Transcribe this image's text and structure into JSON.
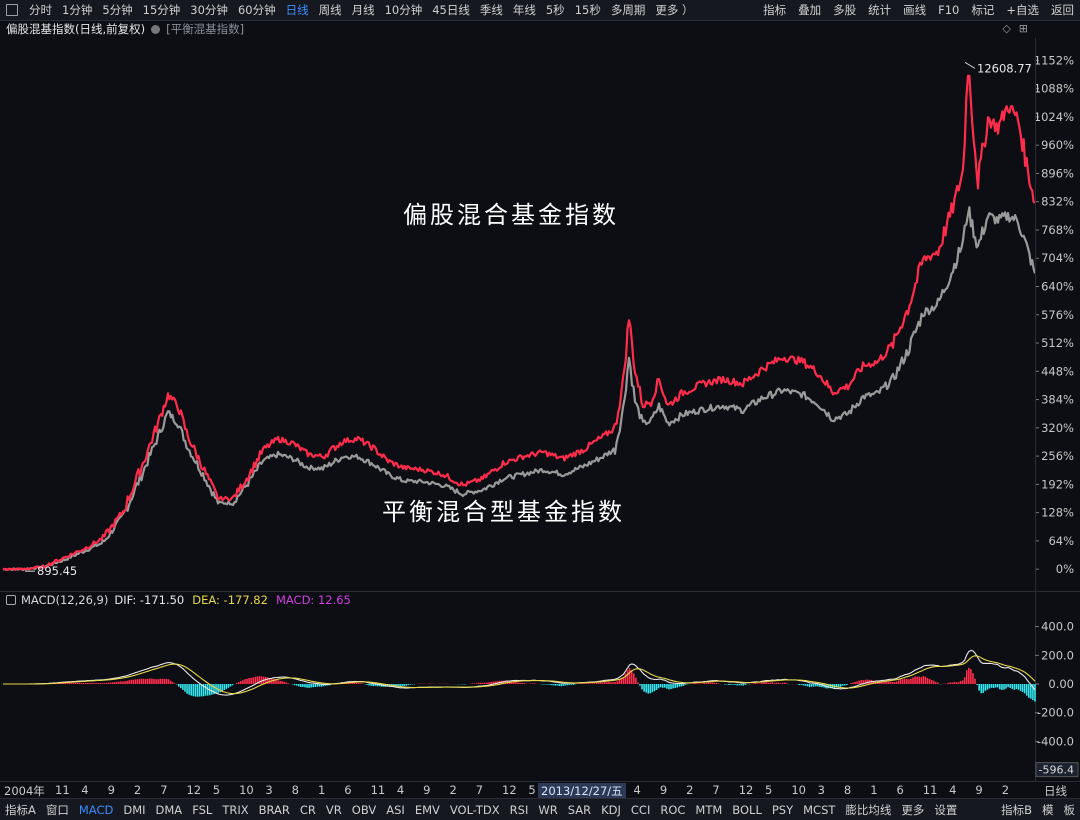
{
  "topbar": {
    "periods": [
      "分时",
      "1分钟",
      "5分钟",
      "15分钟",
      "30分钟",
      "60分钟",
      "日线",
      "周线",
      "月线",
      "10分钟",
      "45日线",
      "季线",
      "年线",
      "5秒",
      "15秒",
      "多周期",
      "更多 ）"
    ],
    "active_period": "日线",
    "tools": [
      "指标",
      "叠加",
      "多股",
      "统计",
      "画线",
      "F10",
      "标记",
      "+自选",
      "返回"
    ]
  },
  "titlebar": {
    "index_name": "偏股混基指数(日线,前复权)",
    "overlay_name": "[平衡混基指数]",
    "right_icons": [
      "◇",
      "⊞"
    ]
  },
  "main_chart": {
    "y_ticks": [
      "1152%",
      "1088%",
      "1024%",
      "960%",
      "896%",
      "832%",
      "768%",
      "704%",
      "640%",
      "576%",
      "512%",
      "448%",
      "384%",
      "320%",
      "256%",
      "192%",
      "128%",
      "64%",
      "0%"
    ],
    "y_tick_values": [
      1152,
      1088,
      1024,
      960,
      896,
      832,
      768,
      704,
      640,
      576,
      512,
      448,
      384,
      320,
      256,
      192,
      128,
      64,
      0
    ],
    "high_label": "12608.77",
    "low_label": "895.45",
    "annotation_top": "偏股混合基金指数",
    "annotation_bottom": "平衡混合型基金指数"
  },
  "macd": {
    "label": "MACD(12,26,9)",
    "dif_label": "DIF: -171.50",
    "dea_label": "DEA: -177.82",
    "macd_label": "MACD: 12.65",
    "y_ticks": [
      "400.0",
      "200.0",
      "0.00",
      "-200.0",
      "-400.0"
    ],
    "y_tick_values": [
      400,
      200,
      0,
      -200,
      -400
    ],
    "current_value": "-596.4"
  },
  "xaxis": {
    "labels": [
      "2004年",
      "11",
      "4",
      "9",
      "2",
      "7",
      "12",
      "5",
      "10",
      "3",
      "8",
      "1",
      "6",
      "11",
      "4",
      "9",
      "2",
      "7",
      "12",
      "5",
      "10",
      "6",
      "11",
      "4",
      "9",
      "2",
      "7",
      "12",
      "5",
      "10",
      "3",
      "8",
      "1",
      "6",
      "11",
      "4",
      "9",
      "2"
    ],
    "date_tip": "2013/12/27/五",
    "right_label": "日线"
  },
  "bottombar": {
    "tabs": [
      "指标A",
      "窗口",
      "MACD",
      "DMI",
      "DMA",
      "FSL",
      "TRIX",
      "BRAR",
      "CR",
      "VR",
      "OBV",
      "ASI",
      "EMV",
      "VOL-TDX",
      "RSI",
      "WR",
      "SAR",
      "KDJ",
      "CCI",
      "ROC",
      "MTM",
      "BOLL",
      "PSY",
      "MCST",
      "膨比均线",
      "更多",
      "设置"
    ],
    "active_tab": "MACD",
    "right": [
      "指标B",
      "模",
      "板"
    ]
  },
  "chart_data": {
    "type": "line",
    "series": [
      {
        "name": "偏股混合基金指数",
        "color": "#ff2d4b",
        "x": [
          0,
          20,
          40,
          60,
          80,
          100,
          120,
          140,
          155,
          165,
          175,
          185,
          200,
          215,
          230,
          245,
          260,
          275,
          290,
          305,
          320,
          340,
          355,
          370,
          385,
          400,
          420,
          440,
          460,
          480,
          500,
          520,
          540,
          560,
          580,
          600,
          612,
          620,
          626,
          632,
          640,
          648,
          656,
          665,
          680,
          700,
          720,
          740,
          760,
          780,
          800,
          815,
          830,
          845,
          860,
          875,
          890,
          905,
          920,
          935,
          950,
          960,
          965,
          975,
          985,
          995,
          1005,
          1015,
          1025,
          1032
        ],
        "y": [
          0,
          0,
          5,
          25,
          45,
          70,
          130,
          240,
          330,
          395,
          370,
          300,
          230,
          160,
          160,
          210,
          270,
          295,
          285,
          260,
          255,
          290,
          295,
          275,
          245,
          230,
          225,
          215,
          190,
          205,
          240,
          255,
          265,
          250,
          270,
          300,
          320,
          420,
          570,
          450,
          370,
          380,
          430,
          370,
          400,
          420,
          430,
          420,
          455,
          480,
          470,
          445,
          400,
          415,
          460,
          470,
          510,
          590,
          700,
          720,
          820,
          900,
          1145,
          880,
          1020,
          1000,
          1050,
          1020,
          900,
          830
        ]
      },
      {
        "name": "平衡混合型基金指数",
        "color": "#9a9a9a",
        "x": [
          0,
          20,
          40,
          60,
          80,
          100,
          120,
          140,
          155,
          165,
          175,
          185,
          200,
          215,
          230,
          245,
          260,
          275,
          290,
          305,
          320,
          340,
          355,
          370,
          385,
          400,
          420,
          440,
          460,
          480,
          500,
          520,
          540,
          560,
          580,
          600,
          612,
          620,
          626,
          632,
          640,
          648,
          656,
          665,
          680,
          700,
          720,
          740,
          760,
          780,
          800,
          815,
          830,
          845,
          860,
          875,
          890,
          905,
          920,
          935,
          950,
          960,
          965,
          975,
          985,
          995,
          1005,
          1015,
          1025,
          1032
        ],
        "y": [
          0,
          0,
          5,
          20,
          40,
          60,
          120,
          220,
          300,
          355,
          330,
          275,
          215,
          150,
          150,
          195,
          245,
          260,
          250,
          230,
          228,
          255,
          255,
          238,
          215,
          200,
          198,
          190,
          170,
          180,
          205,
          215,
          225,
          215,
          232,
          255,
          272,
          360,
          480,
          380,
          330,
          335,
          370,
          330,
          350,
          362,
          370,
          360,
          388,
          405,
          395,
          375,
          340,
          352,
          390,
          398,
          430,
          495,
          580,
          600,
          680,
          740,
          815,
          730,
          800,
          790,
          800,
          790,
          720,
          670
        ]
      }
    ],
    "ylim": [
      -20,
      1180
    ]
  }
}
